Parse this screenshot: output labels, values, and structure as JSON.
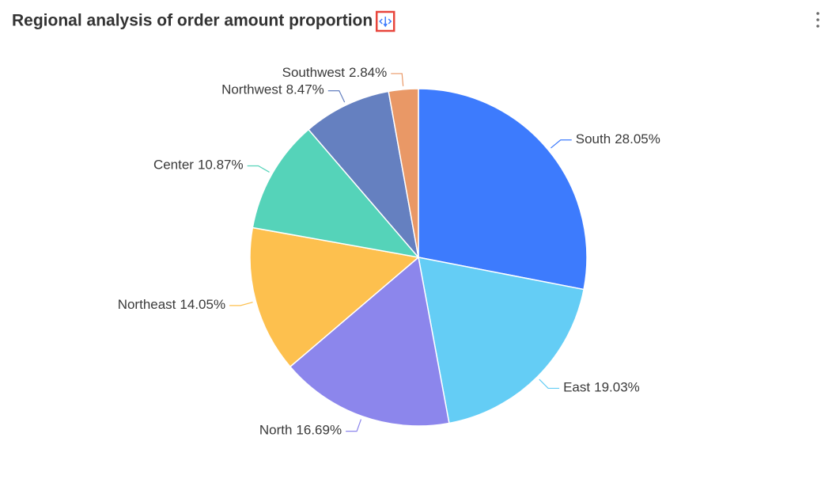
{
  "chart_data": {
    "type": "pie",
    "title": "Regional analysis of order amount proportion",
    "categories": [
      "South",
      "East",
      "North",
      "Northeast",
      "Center",
      "Northwest",
      "Southwest"
    ],
    "values": [
      28.05,
      19.03,
      16.69,
      14.05,
      10.87,
      8.47,
      2.84
    ],
    "value_labels": [
      "28.05%",
      "19.03%",
      "16.69%",
      "14.05%",
      "10.87%",
      "8.47%",
      "2.84%"
    ],
    "colors": [
      "#3d7bfd",
      "#64cdf5",
      "#8c86ec",
      "#fdc04e",
      "#55d3b9",
      "#6580c0",
      "#e99866"
    ]
  }
}
